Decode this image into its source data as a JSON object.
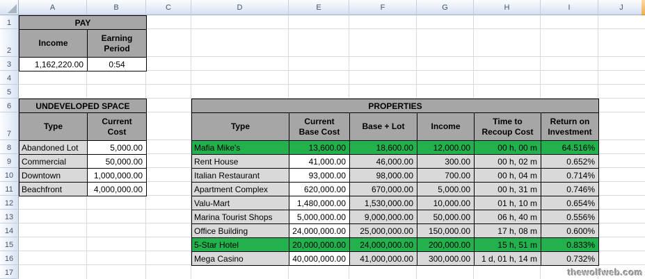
{
  "spreadsheet": {
    "column_headers": [
      "A",
      "B",
      "C",
      "D",
      "E",
      "F",
      "G",
      "H",
      "I",
      "J"
    ],
    "row_headers": [
      "1",
      "2",
      "3",
      "4",
      "5",
      "6",
      "7",
      "8",
      "9",
      "10",
      "11",
      "12",
      "13",
      "14",
      "15",
      "16",
      "17"
    ]
  },
  "pay": {
    "title": "PAY",
    "headers": [
      "Income",
      "Earning\nPeriod"
    ],
    "income": "1,162,220.00",
    "earning_period": "0:54"
  },
  "undeveloped_space": {
    "title": "UNDEVELOPED SPACE",
    "headers": [
      "Type",
      "Current\nCost"
    ],
    "rows": [
      [
        "Abandoned Lot",
        "5,000.00"
      ],
      [
        "Commercial",
        "50,000.00"
      ],
      [
        "Downtown",
        "1,000,000.00"
      ],
      [
        "Beachfront",
        "4,000,000.00"
      ]
    ]
  },
  "properties": {
    "title": "PROPERTIES",
    "headers": [
      "Type",
      "Current\nBase Cost",
      "Base + Lot",
      "Income",
      "Time to\nRecoup Cost",
      "Return on\nInvestment"
    ],
    "rows": [
      {
        "cells": [
          "Mafia Mike's",
          "13,600.00",
          "18,600.00",
          "12,000.00",
          "00 h, 00 m",
          "64.516%"
        ],
        "highlight": true,
        "flag": false
      },
      {
        "cells": [
          "Rent House",
          "41,000.00",
          "46,000.00",
          "300.00",
          "00 h, 02 m",
          "0.652%"
        ],
        "highlight": false,
        "flag": false
      },
      {
        "cells": [
          "Italian Restaurant",
          "93,000.00",
          "98,000.00",
          "700.00",
          "00 h, 04 m",
          "0.714%"
        ],
        "highlight": false,
        "flag": false
      },
      {
        "cells": [
          "Apartment Complex",
          "620,000.00",
          "670,000.00",
          "5,000.00",
          "00 h, 31 m",
          "0.746%"
        ],
        "highlight": false,
        "flag": false
      },
      {
        "cells": [
          "Valu-Mart",
          "1,480,000.00",
          "1,530,000.00",
          "10,000.00",
          "01 h, 10 m",
          "0.654%"
        ],
        "highlight": false,
        "flag": false
      },
      {
        "cells": [
          "Marina Tourist Shops",
          "5,000,000.00",
          "9,000,000.00",
          "50,000.00",
          "06 h, 40 m",
          "0.556%"
        ],
        "highlight": false,
        "flag": false
      },
      {
        "cells": [
          "Office Building",
          "24,000,000.00",
          "25,000,000.00",
          "150,000.00",
          "17 h, 08 m",
          "0.600%"
        ],
        "highlight": false,
        "flag": true
      },
      {
        "cells": [
          "5-Star Hotel",
          "20,000,000.00",
          "24,000,000.00",
          "200,000.00",
          "15 h, 51 m",
          "0.833%"
        ],
        "highlight": true,
        "flag": false
      },
      {
        "cells": [
          "Mega Casino",
          "40,000,000.00",
          "41,000,000.00",
          "300,000.00",
          "1 d, 01 h, 14 m",
          "0.732%"
        ],
        "highlight": false,
        "flag": false
      }
    ]
  },
  "watermark": "thewolfweb.com",
  "colors": {
    "section_header_fill": "#A6A6A6",
    "row_fill": "#D9D9D9",
    "value_fill": "#FFFFFF",
    "highlight_fill": "#22B14C",
    "gridline": "#D5DBE5",
    "flag_triangle": "#2E9E4A"
  }
}
